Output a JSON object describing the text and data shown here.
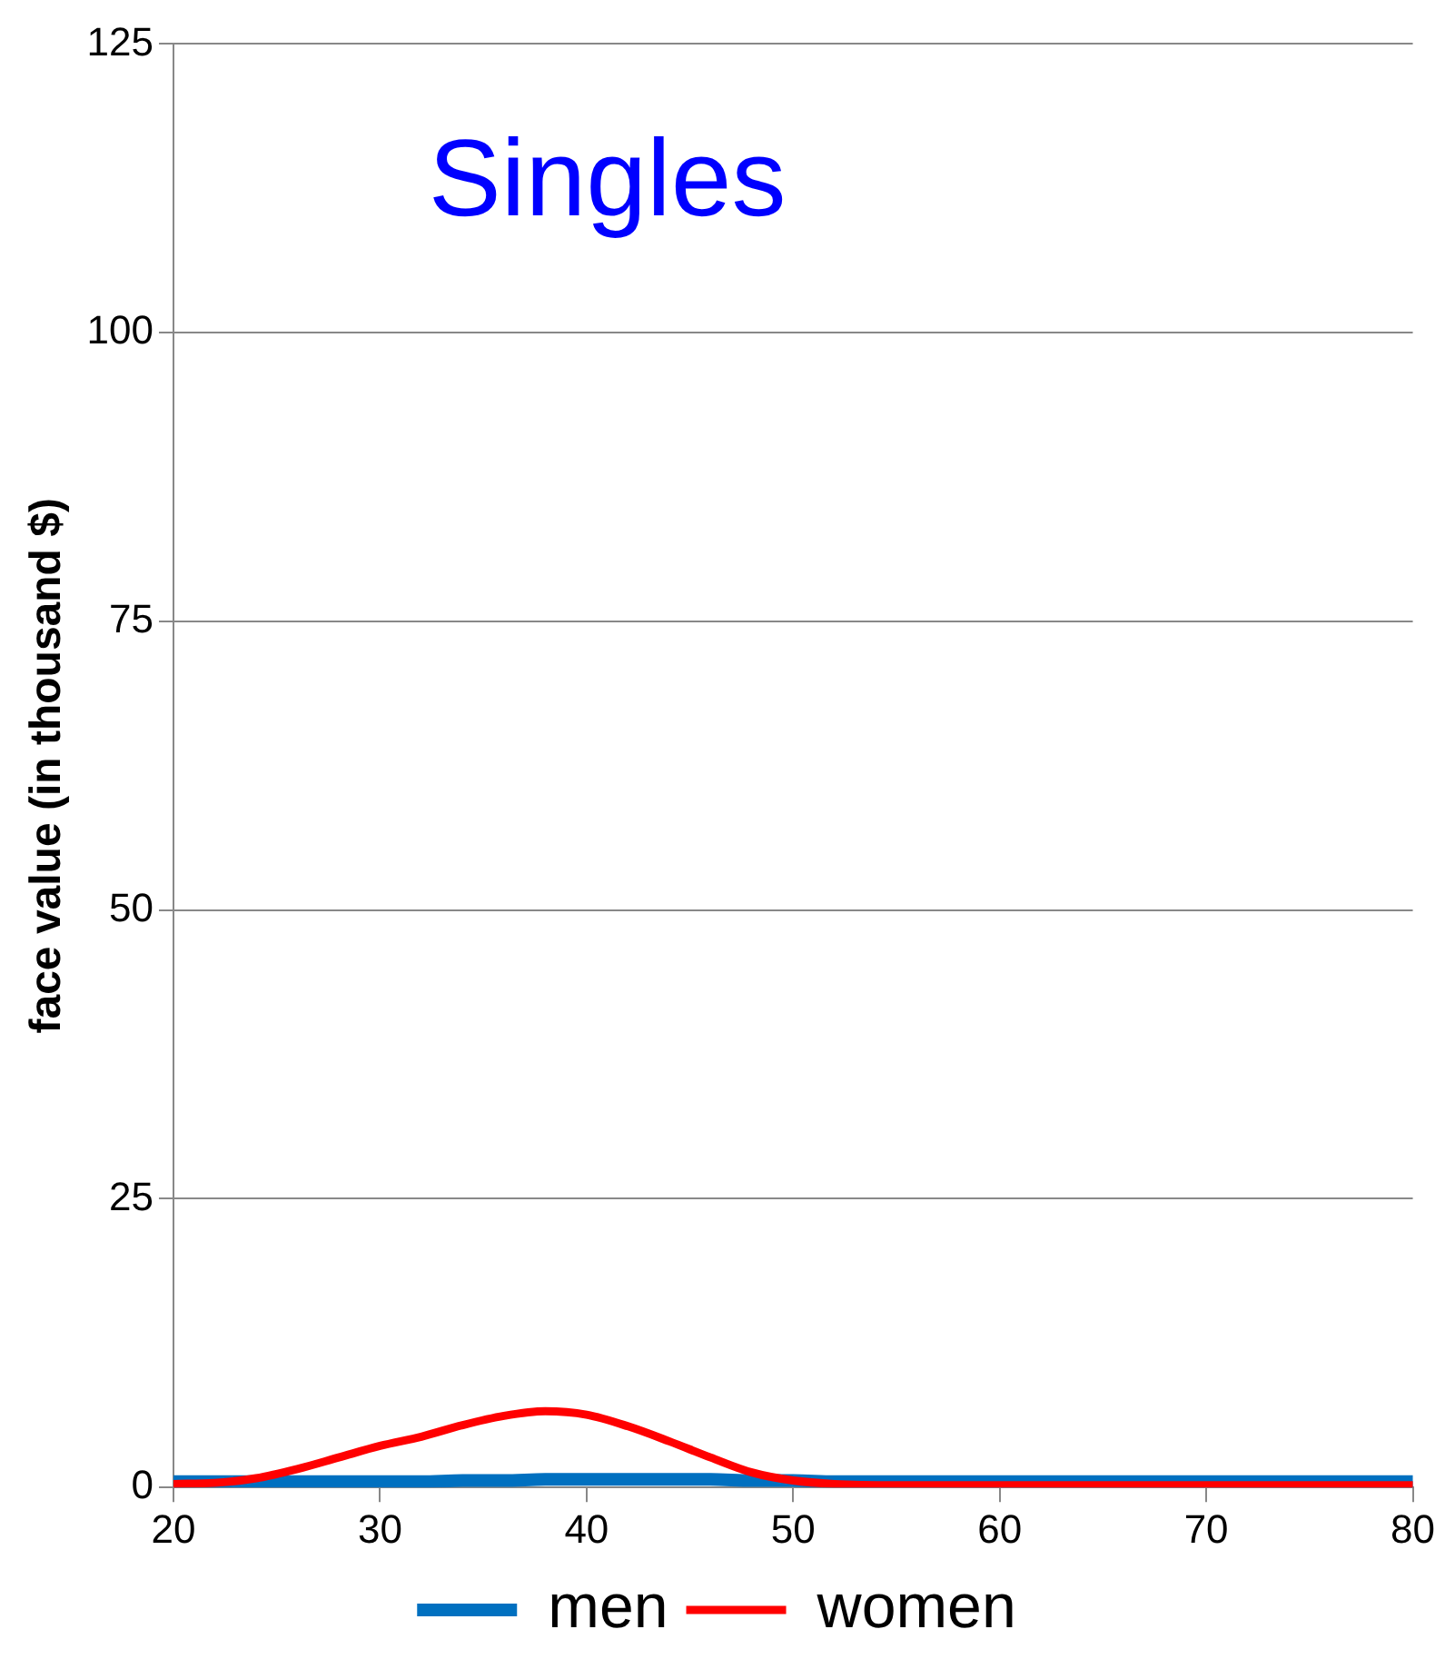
{
  "chart_data": {
    "type": "line",
    "title": "Singles",
    "ylabel": "face value (in thousand $)",
    "x": [
      20,
      22,
      24,
      26,
      28,
      30,
      32,
      34,
      36,
      38,
      40,
      42,
      44,
      46,
      48,
      50,
      52,
      55,
      60,
      65,
      70,
      75,
      80
    ],
    "series": [
      {
        "name": "men",
        "color": "#0070c0",
        "values": [
          0.5,
          0.5,
          0.5,
          0.5,
          0.5,
          0.5,
          0.5,
          0.6,
          0.6,
          0.7,
          0.7,
          0.7,
          0.7,
          0.7,
          0.6,
          0.6,
          0.5,
          0.5,
          0.5,
          0.5,
          0.5,
          0.5,
          0.5
        ]
      },
      {
        "name": "women",
        "color": "#ff0000",
        "values": [
          0.3,
          0.4,
          0.8,
          1.6,
          2.6,
          3.6,
          4.4,
          5.4,
          6.2,
          6.6,
          6.3,
          5.3,
          4.0,
          2.6,
          1.3,
          0.6,
          0.3,
          0.2,
          0.2,
          0.2,
          0.2,
          0.2,
          0.2
        ]
      }
    ],
    "xlim": [
      20,
      80
    ],
    "xticks": [
      20,
      30,
      40,
      50,
      60,
      70,
      80
    ],
    "ylim": [
      0,
      125
    ],
    "yticks": [
      0,
      25,
      50,
      75,
      100,
      125
    ],
    "grid": "y",
    "legend": "bottom",
    "marker": "none",
    "line_style": "solid"
  }
}
